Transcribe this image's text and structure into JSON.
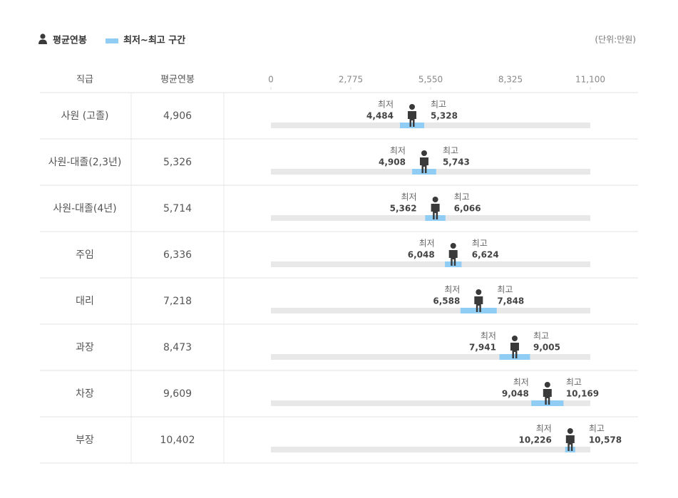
{
  "chart_data": {
    "type": "range",
    "category_label": "직급",
    "range_label": "최저~최고 구간",
    "unit": "(단위:만원)",
    "categories": [
      "사원 (고졸)",
      "사원-대졸(2,3년)",
      "사원-대졸(4년)",
      "주임",
      "대리",
      "과장",
      "차장",
      "부장"
    ],
    "series": [
      {
        "name": "평균연봉",
        "color": "#3a3a3a",
        "values": [
          4906,
          5326,
          5714,
          6336,
          7218,
          8473,
          9609,
          10402
        ],
        "value_labels": [
          "4,906",
          "5,326",
          "5,714",
          "6,336",
          "7,218",
          "8,473",
          "9,609",
          "10,402"
        ]
      },
      {
        "name": "최저",
        "color": "#8fcdf5",
        "values": [
          4484,
          4908,
          5362,
          6048,
          6588,
          7941,
          9048,
          10226
        ],
        "value_labels": [
          "4,484",
          "4,908",
          "5,362",
          "6,048",
          "6,588",
          "7,941",
          "9,048",
          "10,226"
        ]
      },
      {
        "name": "최고",
        "color": "#8fcdf5",
        "values": [
          5328,
          5743,
          6066,
          6624,
          7848,
          9005,
          10169,
          10578
        ],
        "value_labels": [
          "5,328",
          "5,743",
          "6,066",
          "6,624",
          "7,848",
          "9,005",
          "10,169",
          "10,578"
        ]
      }
    ],
    "xlim": [
      0,
      11100
    ],
    "xticks": [
      0,
      {
        "value": 2775,
        "label": "2,775"
      },
      {
        "value": 5550,
        "label": "5,550"
      },
      {
        "value": 8325,
        "label": "8,325"
      },
      {
        "value": 11100,
        "label": "11,100"
      }
    ]
  }
}
